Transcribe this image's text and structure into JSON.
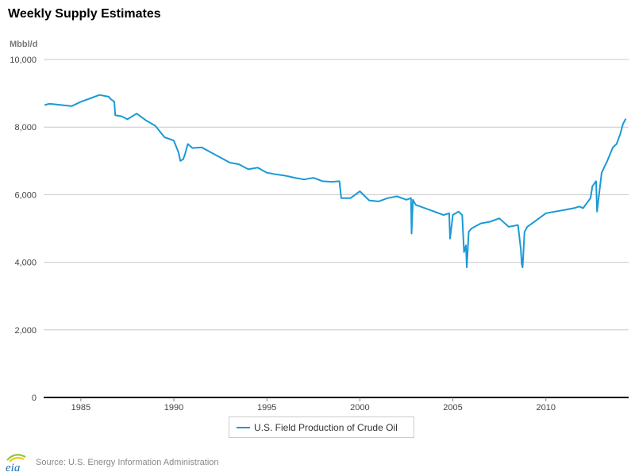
{
  "page": {
    "title": "Weekly Supply Estimates",
    "source": "Source: U.S. Energy Information Administration",
    "logo_text": "eia",
    "logo_icon": "eia-logo-icon"
  },
  "colors": {
    "series": "#1a9ad6",
    "grid": "#c8c8c8",
    "axis": "#000000",
    "logo_blue": "#1a6fb8",
    "logo_green": "#8cc63f",
    "logo_yellow": "#f5c400"
  },
  "chart_data": {
    "type": "line",
    "title": "Weekly Supply Estimates",
    "ylabel": "Mbbl/d",
    "xlabel": "",
    "ylim": [
      0,
      10000
    ],
    "xlim": [
      1983.0,
      2014.45
    ],
    "yticks": [
      0,
      2000,
      4000,
      6000,
      8000,
      10000
    ],
    "ytick_labels": [
      "0",
      "2,000",
      "4,000",
      "6,000",
      "8,000",
      "10,000"
    ],
    "xticks": [
      1985,
      1990,
      1995,
      2000,
      2005,
      2010
    ],
    "xtick_labels": [
      "1985",
      "1990",
      "1995",
      "2000",
      "2005",
      "2010"
    ],
    "grid": true,
    "legend": "bottom-center",
    "series": [
      {
        "name": "U.S. Field Production of Crude Oil",
        "x": [
          1983.05,
          1983.3,
          1984.0,
          1984.5,
          1985.0,
          1985.5,
          1986.0,
          1986.5,
          1986.6,
          1986.8,
          1986.85,
          1987.2,
          1987.5,
          1988.0,
          1988.5,
          1989.0,
          1989.5,
          1990.0,
          1990.25,
          1990.35,
          1990.5,
          1990.6,
          1990.75,
          1991.0,
          1991.5,
          1992.0,
          1992.5,
          1993.0,
          1993.5,
          1994.0,
          1994.5,
          1995.0,
          1995.5,
          1996.0,
          1996.5,
          1997.0,
          1997.5,
          1998.0,
          1998.5,
          1998.9,
          1999.0,
          1999.5,
          2000.0,
          2000.5,
          2001.0,
          2001.5,
          2002.0,
          2002.5,
          2002.75,
          2002.78,
          2002.85,
          2003.0,
          2003.5,
          2004.0,
          2004.5,
          2004.8,
          2004.85,
          2005.0,
          2005.3,
          2005.5,
          2005.6,
          2005.7,
          2005.75,
          2005.85,
          2006.0,
          2006.5,
          2007.0,
          2007.5,
          2008.0,
          2008.5,
          2008.65,
          2008.7,
          2008.75,
          2008.85,
          2009.0,
          2009.5,
          2010.0,
          2010.5,
          2011.0,
          2011.5,
          2011.8,
          2012.0,
          2012.4,
          2012.5,
          2012.7,
          2012.75,
          2012.9,
          2013.0,
          2013.3,
          2013.6,
          2013.8,
          2014.0,
          2014.15,
          2014.3
        ],
        "values": [
          8650,
          8690,
          8650,
          8620,
          8750,
          8850,
          8950,
          8900,
          8830,
          8750,
          8350,
          8320,
          8230,
          8400,
          8200,
          8040,
          7700,
          7600,
          7250,
          7000,
          7050,
          7200,
          7500,
          7380,
          7400,
          7250,
          7100,
          6950,
          6900,
          6750,
          6800,
          6650,
          6600,
          6560,
          6500,
          6450,
          6500,
          6400,
          6380,
          6400,
          5900,
          5900,
          6100,
          5830,
          5800,
          5900,
          5950,
          5850,
          5900,
          4850,
          5850,
          5700,
          5600,
          5500,
          5400,
          5450,
          4700,
          5400,
          5500,
          5400,
          4300,
          4500,
          3850,
          4900,
          5000,
          5150,
          5200,
          5300,
          5050,
          5100,
          4400,
          3950,
          3850,
          4900,
          5050,
          5250,
          5450,
          5500,
          5550,
          5600,
          5650,
          5600,
          5900,
          6250,
          6400,
          5500,
          6200,
          6650,
          7000,
          7400,
          7500,
          7800,
          8100,
          8250
        ]
      }
    ]
  }
}
